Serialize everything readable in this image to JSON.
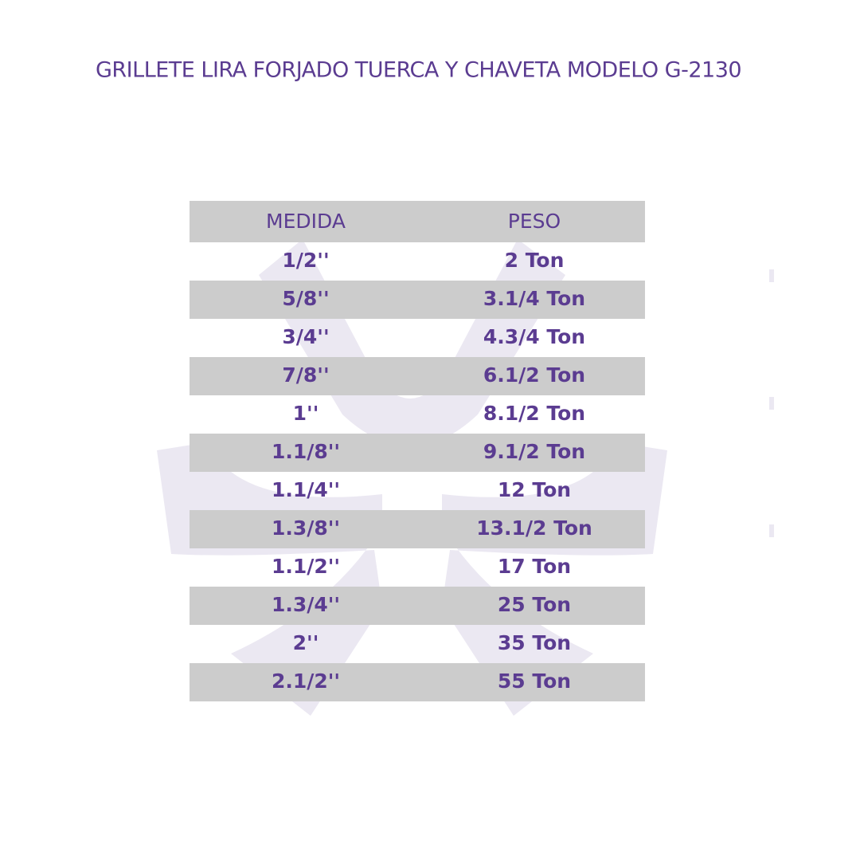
{
  "title": "GRILLETE LIRA FORJADO TUERCA Y CHAVETA MODELO G-2130",
  "table": {
    "header": [
      "MEDIDA",
      "PESO"
    ],
    "rows": [
      [
        "1/2''",
        "2 Ton"
      ],
      [
        "5/8''",
        "3.1/4 Ton"
      ],
      [
        "3/4''",
        "4.3/4 Ton"
      ],
      [
        "7/8''",
        "6.1/2 Ton"
      ],
      [
        "1''",
        "8.1/2 Ton"
      ],
      [
        "1.1/8''",
        "9.1/2 Ton"
      ],
      [
        "1.1/4''",
        "12 Ton"
      ],
      [
        "1.3/8''",
        "13.1/2 Ton"
      ],
      [
        "1.1/2''",
        "17 Ton"
      ],
      [
        "1.3/4''",
        "25 Ton"
      ],
      [
        "2''",
        "35 Ton"
      ],
      [
        "2.1/2''",
        "55 Ton"
      ]
    ]
  }
}
